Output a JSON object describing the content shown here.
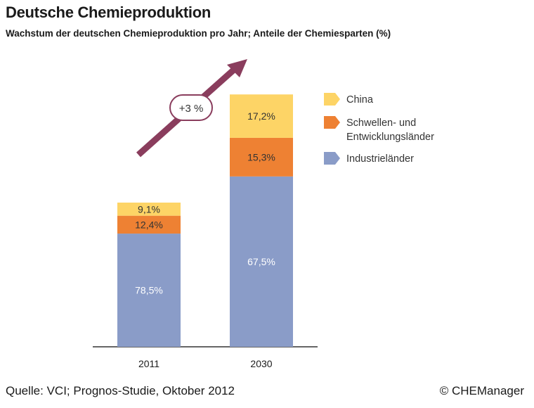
{
  "header": {
    "title": "Deutsche Chemieproduktion",
    "subtitle": "Wachstum der deutschen Chemieproduktion pro Jahr; Anteile der Chemiesparten (%)"
  },
  "footer": {
    "source": "Quelle: VCI; Prognos-Studie, Oktober 2012",
    "copyright": "© CHEManager"
  },
  "colors": {
    "china": "#fdd466",
    "schwellen": "#ee8133",
    "industrie": "#8a9cc8",
    "arrow": "#8a3d5d",
    "axis": "#333333"
  },
  "chart_data": {
    "type": "bar",
    "stacked": true,
    "categories": [
      "2011",
      "2030"
    ],
    "relative_total": [
      1.0,
      1.75
    ],
    "series": [
      {
        "name": "Industrieländer",
        "values": [
          78.5,
          67.5
        ],
        "labels": [
          "78,5%",
          "67,5%"
        ],
        "color": "#8a9cc8"
      },
      {
        "name": "Schwellen- und Entwicklungsländer",
        "legend_lines": [
          "Schwellen- und",
          "Entwicklungsländer"
        ],
        "values": [
          12.4,
          15.3
        ],
        "labels": [
          "12,4%",
          "15,3%"
        ],
        "color": "#ee8133"
      },
      {
        "name": "China",
        "values": [
          9.1,
          17.2
        ],
        "labels": [
          "9,1%",
          "17,2%"
        ],
        "color": "#fdd466"
      }
    ],
    "legend_order": [
      "China",
      "Schwellen- und Entwicklungsländer",
      "Industrieländer"
    ],
    "legend_position": "right",
    "annotation": "+3 %",
    "title": "Deutsche Chemieproduktion",
    "xlabel": "",
    "ylabel": "",
    "grid": false
  }
}
